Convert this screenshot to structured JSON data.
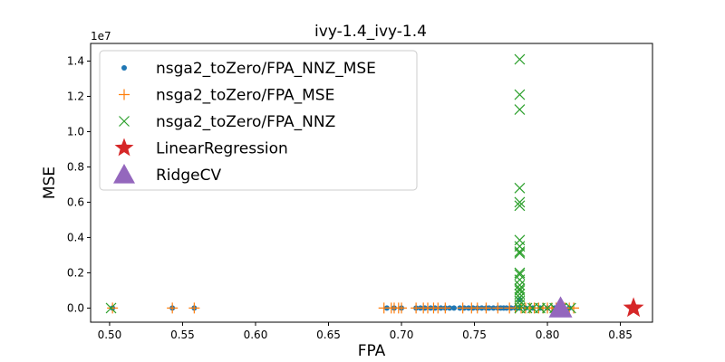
{
  "chart_data": {
    "type": "scatter",
    "title": "ivy-1.4_ivy-1.4",
    "xlabel": "FPA",
    "ylabel": "MSE",
    "y_offset_label": "1e7",
    "xlim": [
      0.487,
      0.872
    ],
    "ylim": [
      -0.08,
      1.5
    ],
    "x_ticks": [
      0.5,
      0.55,
      0.6,
      0.65,
      0.7,
      0.75,
      0.8,
      0.85
    ],
    "x_tick_labels": [
      "0.50",
      "0.55",
      "0.60",
      "0.65",
      "0.70",
      "0.75",
      "0.80",
      "0.85"
    ],
    "y_ticks": [
      0.0,
      0.2,
      0.4,
      0.6,
      0.8,
      1.0,
      1.2,
      1.4
    ],
    "y_tick_labels": [
      "0.0",
      "0.2",
      "0.4",
      "0.6",
      "0.8",
      "1.0",
      "1.2",
      "1.4"
    ],
    "legend_position": "top-left",
    "grid": false,
    "series": [
      {
        "name": "nsga2_toZero/FPA_NNZ_MSE",
        "marker": "circle",
        "color": "#1f77b4",
        "x": [
          0.502,
          0.543,
          0.558,
          0.69,
          0.695,
          0.7,
          0.71,
          0.713,
          0.716,
          0.72,
          0.723,
          0.727,
          0.73,
          0.733,
          0.736,
          0.74,
          0.743,
          0.746,
          0.749,
          0.752,
          0.755,
          0.758,
          0.76,
          0.763,
          0.766,
          0.768,
          0.77,
          0.772,
          0.775,
          0.778,
          0.781,
          0.785,
          0.79,
          0.795,
          0.8,
          0.805,
          0.81,
          0.815,
          0.781
        ],
        "y": [
          0,
          0,
          0,
          0,
          0,
          0,
          0,
          0,
          0,
          0,
          0,
          0,
          0,
          0,
          0,
          0,
          0,
          0,
          0,
          0,
          0,
          0,
          0,
          0,
          0,
          0,
          0,
          0,
          0,
          0,
          0,
          0,
          0,
          0,
          0,
          0,
          0,
          0,
          0.048
        ]
      },
      {
        "name": "nsga2_toZero/FPA_MSE",
        "marker": "plus",
        "color": "#ff7f0e",
        "x": [
          0.502,
          0.543,
          0.558,
          0.688,
          0.693,
          0.695,
          0.698,
          0.7,
          0.71,
          0.715,
          0.718,
          0.722,
          0.725,
          0.73,
          0.742,
          0.748,
          0.752,
          0.758,
          0.766,
          0.774,
          0.778,
          0.782,
          0.785,
          0.788,
          0.791,
          0.794,
          0.797,
          0.8,
          0.803,
          0.806,
          0.809,
          0.812,
          0.815,
          0.818
        ],
        "y": [
          0,
          0,
          0,
          0,
          0,
          0,
          0,
          0,
          0,
          0,
          0,
          0,
          0,
          0,
          0,
          0,
          0,
          0,
          0,
          0,
          0,
          0,
          0,
          0,
          0,
          0,
          0,
          0,
          0,
          0,
          0,
          0,
          0,
          0
        ]
      },
      {
        "name": "nsga2_toZero/FPA_NNZ",
        "marker": "x",
        "color": "#2ca02c",
        "x": [
          0.501,
          0.781,
          0.781,
          0.781,
          0.781,
          0.781,
          0.781,
          0.781,
          0.781,
          0.781,
          0.781,
          0.781,
          0.781,
          0.781,
          0.781,
          0.781,
          0.781,
          0.781,
          0.781,
          0.781,
          0.781,
          0.781,
          0.786,
          0.79,
          0.795,
          0.8,
          0.805,
          0.81,
          0.816
        ],
        "y": [
          0,
          1.41,
          1.21,
          1.125,
          0.68,
          0.6,
          0.58,
          0.385,
          0.35,
          0.32,
          0.31,
          0.2,
          0.19,
          0.16,
          0.13,
          0.11,
          0.1,
          0.08,
          0.06,
          0.04,
          0.02,
          0,
          0,
          0,
          0,
          0,
          0,
          0,
          0
        ]
      },
      {
        "name": "LinearRegression",
        "marker": "star",
        "color": "#d62728",
        "x": [
          0.859
        ],
        "y": [
          0
        ]
      },
      {
        "name": "RidgeCV",
        "marker": "triangle",
        "color": "#9467bd",
        "x": [
          0.809
        ],
        "y": [
          0
        ]
      }
    ]
  }
}
